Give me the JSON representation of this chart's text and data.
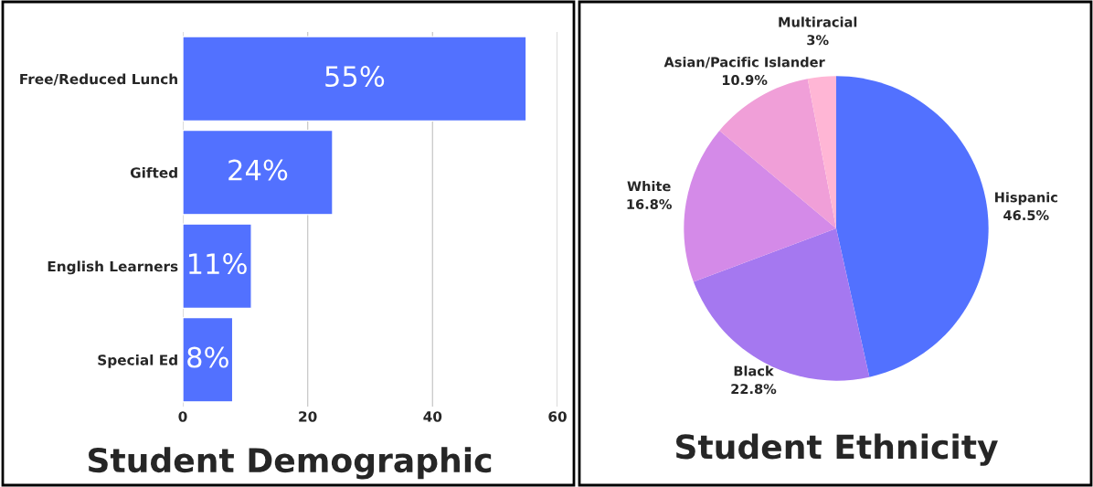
{
  "chart_data": [
    {
      "type": "bar",
      "orientation": "horizontal",
      "title": "Student Demographic",
      "categories": [
        "Free/Reduced Lunch",
        "Gifted",
        "English Learners",
        "Special Ed"
      ],
      "values": [
        55,
        24,
        11,
        8
      ],
      "value_labels": [
        "55%",
        "24%",
        "11%",
        "8%"
      ],
      "color": "#5271ff",
      "xlim": [
        0,
        60
      ],
      "xticks": [
        0,
        20,
        40,
        60
      ],
      "grid": "x",
      "legend": false
    },
    {
      "type": "pie",
      "title": "Student Ethnicity",
      "categories": [
        "Hispanic",
        "Black",
        "White",
        "Asian/Pacific Islander",
        "Multiracial"
      ],
      "values": [
        46.5,
        22.8,
        16.8,
        10.9,
        3
      ],
      "value_labels": [
        "46.5%",
        "22.8%",
        "16.8%",
        "10.9%",
        "3%"
      ],
      "colors": [
        "#5271ff",
        "#a578f0",
        "#d48ae8",
        "#f09fd8",
        "#ffb6d5"
      ],
      "legend": false
    }
  ]
}
